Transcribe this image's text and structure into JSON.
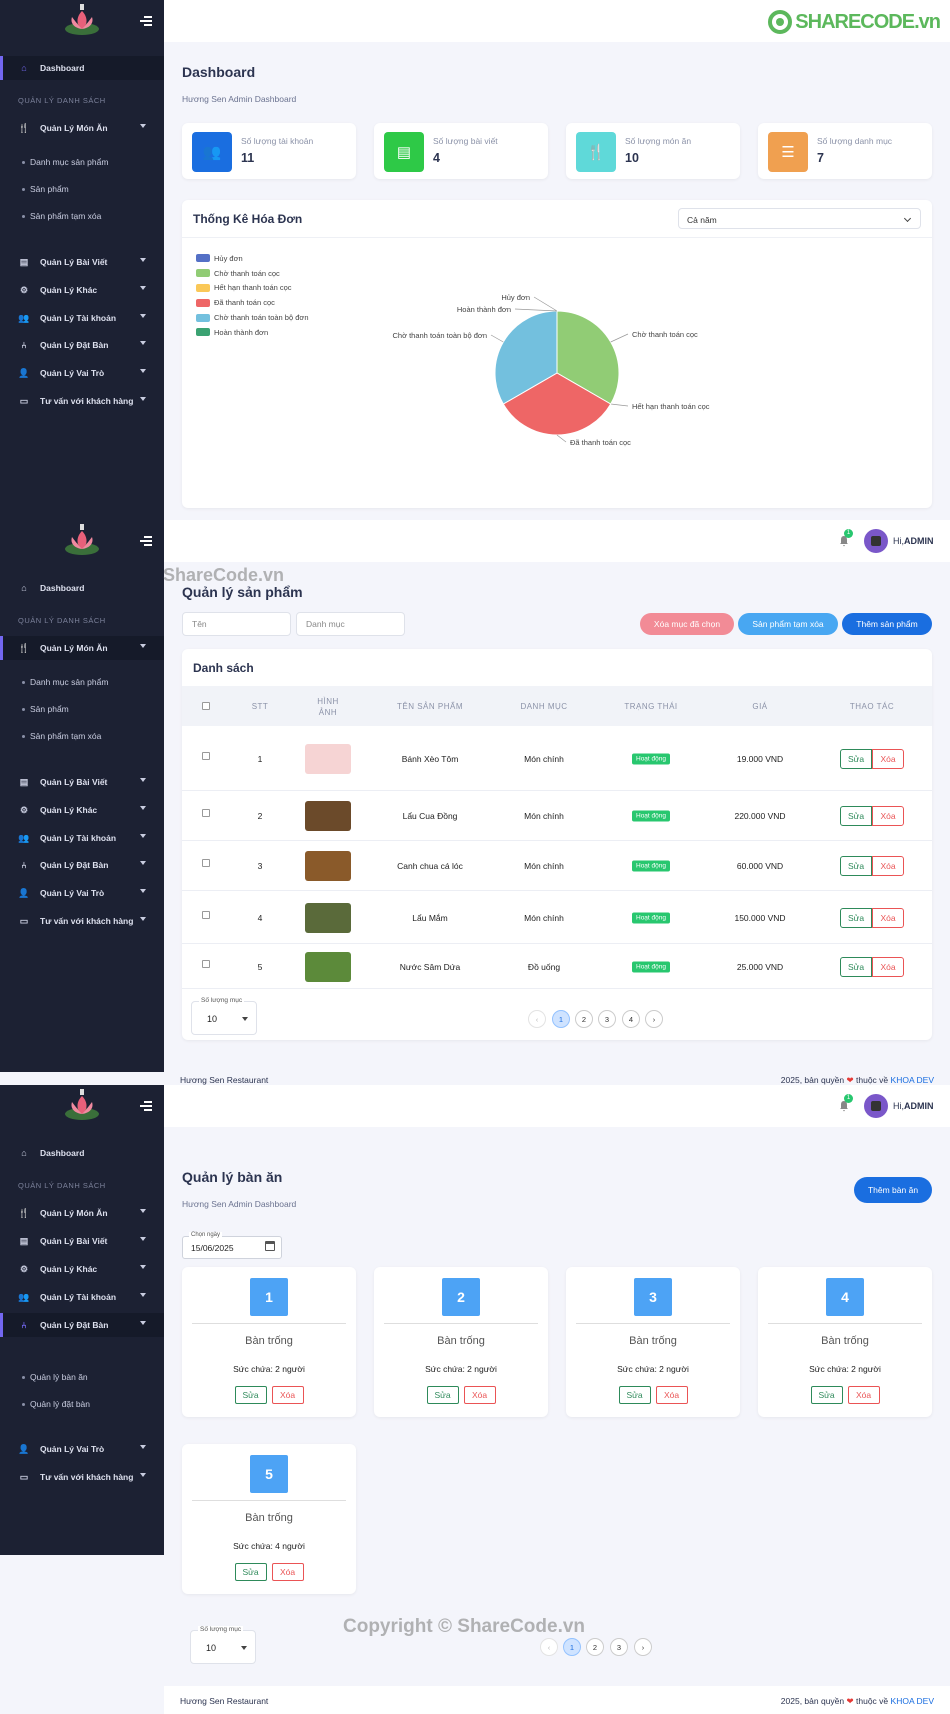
{
  "brand": {
    "logo_text": "SHARECODE.vn",
    "notif_count": "1",
    "admin_prefix": "Hi,",
    "admin_name": "ADMIN"
  },
  "sidebar": {
    "dashboard": "Dashboard",
    "section": "QUẢN LÝ DANH SÁCH",
    "mon_an": "Quản Lý Món Ăn",
    "mon_an_subs": [
      "Danh mục sản phẩm",
      "Sản phẩm",
      "Sản phẩm tạm xóa"
    ],
    "bai_viet": "Quản Lý Bài Viết",
    "khac": "Quản Lý Khác",
    "tai_khoan": "Quản Lý Tài khoản",
    "dat_ban": "Quản Lý Đặt Bàn",
    "dat_ban_subs": [
      "Quản lý bàn ăn",
      "Quản lý đặt bàn"
    ],
    "vai_tro": "Quản Lý Vai Trò",
    "tu_van": "Tư vấn với khách hàng"
  },
  "dashboard": {
    "title": "Dashboard",
    "subtitle": "Hương Sen Admin Dashboard",
    "stats": [
      {
        "label": "Số lượng tài khoản",
        "value": "11",
        "color": "#1a6ee0",
        "icon": "users-icon"
      },
      {
        "label": "Số lượng bài viết",
        "value": "4",
        "color": "#2ec947",
        "icon": "document-icon"
      },
      {
        "label": "Số lượng món ăn",
        "value": "10",
        "color": "#5fd9d9",
        "icon": "utensils-icon"
      },
      {
        "label": "Số lượng danh mục",
        "value": "7",
        "color": "#f0a050",
        "icon": "list-icon"
      }
    ],
    "chart_title": "Thống Kê Hóa Đơn",
    "period_select": "Cả năm"
  },
  "chart_data": {
    "type": "pie",
    "title": "Thống Kê Hóa Đơn",
    "legend_placement": "top-left",
    "categories": [
      "Hủy đơn",
      "Chờ thanh toán cọc",
      "Hết hạn thanh toán cọc",
      "Đã thanh toán cọc",
      "Chờ thanh toán toàn bộ đơn",
      "Hoàn thành đơn"
    ],
    "colors": [
      "#5470c6",
      "#91cc75",
      "#fac858",
      "#ee6666",
      "#73c0de",
      "#3ba272"
    ],
    "values": [
      0,
      1,
      0,
      1,
      1,
      0
    ]
  },
  "products": {
    "title": "Quản lý sản phẩm",
    "filter_name_placeholder": "Tên",
    "filter_category_placeholder": "Danh mục",
    "btn_delete_selected": "Xóa mục đã chọn",
    "btn_trash": "Sản phẩm tạm xóa",
    "btn_add": "Thêm sản phẩm",
    "list_title": "Danh sách",
    "columns": [
      "STT",
      "HÌNH ẢNH",
      "TÊN SẢN PHẨM",
      "DANH MỤC",
      "TRẠNG THÁI",
      "GIÁ",
      "THAO TÁC"
    ],
    "rows": [
      {
        "stt": "1",
        "name": "Bánh Xèo Tôm",
        "category": "Món chính",
        "status": "Hoạt động",
        "price": "19.000 VND"
      },
      {
        "stt": "2",
        "name": "Lẩu Cua Đồng",
        "category": "Món chính",
        "status": "Hoạt động",
        "price": "220.000 VND"
      },
      {
        "stt": "3",
        "name": "Canh chua cá lóc",
        "category": "Món chính",
        "status": "Hoạt động",
        "price": "60.000 VND"
      },
      {
        "stt": "4",
        "name": "Lẩu Mắm",
        "category": "Món chính",
        "status": "Hoạt động",
        "price": "150.000 VND"
      },
      {
        "stt": "5",
        "name": "Nước Sâm Dứa",
        "category": "Đồ uống",
        "status": "Hoạt động",
        "price": "25.000 VND"
      }
    ],
    "edit_label": "Sửa",
    "delete_label": "Xóa",
    "per_page_label": "Số lượng mục",
    "per_page_value": "10",
    "pages": [
      "1",
      "2",
      "3",
      "4"
    ]
  },
  "footer": {
    "left": "Hương Sen Restaurant",
    "right_prefix": "2025, bản quyền",
    "right_mid": "thuộc về",
    "right_link": "KHOA DEV"
  },
  "tables": {
    "title": "Quản lý bàn ăn",
    "subtitle": "Hương Sen Admin Dashboard",
    "btn_add": "Thêm bàn ăn",
    "date_label": "Chọn ngày",
    "date_value": "15/06/2025",
    "items": [
      {
        "num": "1",
        "status": "Bàn trống",
        "capacity": "Sức chứa: 2 người"
      },
      {
        "num": "2",
        "status": "Bàn trống",
        "capacity": "Sức chứa: 2 người"
      },
      {
        "num": "3",
        "status": "Bàn trống",
        "capacity": "Sức chứa: 2 người"
      },
      {
        "num": "4",
        "status": "Bàn trống",
        "capacity": "Sức chứa: 2 người"
      },
      {
        "num": "5",
        "status": "Bàn trống",
        "capacity": "Sức chứa: 4 người"
      }
    ],
    "edit_label": "Sửa",
    "delete_label": "Xóa",
    "per_page_label": "Số lượng mục",
    "per_page_value": "10",
    "pages": [
      "1",
      "2",
      "3"
    ]
  },
  "watermarks": {
    "top": "ShareCode.vn",
    "bottom": "Copyright © ShareCode.vn"
  }
}
